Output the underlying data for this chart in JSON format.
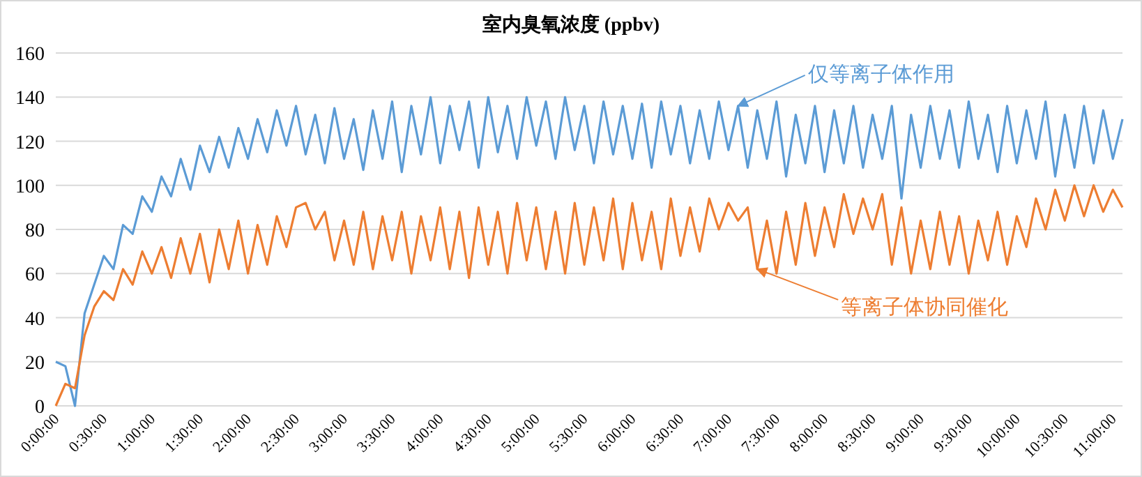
{
  "chart_data": {
    "type": "line",
    "title": "室内臭氧浓度 (ppbv)",
    "x": [
      0,
      0.1,
      0.2,
      0.3,
      0.4,
      0.5,
      0.6,
      0.7,
      0.8,
      0.9,
      1.0,
      1.1,
      1.2,
      1.3,
      1.4,
      1.5,
      1.6,
      1.7,
      1.8,
      1.9,
      2.0,
      2.1,
      2.2,
      2.3,
      2.4,
      2.5,
      2.6,
      2.7,
      2.8,
      2.9,
      3.0,
      3.1,
      3.2,
      3.3,
      3.4,
      3.5,
      3.6,
      3.7,
      3.8,
      3.9,
      4.0,
      4.1,
      4.2,
      4.3,
      4.4,
      4.5,
      4.6,
      4.7,
      4.8,
      4.9,
      5.0,
      5.1,
      5.2,
      5.3,
      5.4,
      5.5,
      5.6,
      5.7,
      5.8,
      5.9,
      6.0,
      6.1,
      6.2,
      6.3,
      6.4,
      6.5,
      6.6,
      6.7,
      6.8,
      6.9,
      7.0,
      7.1,
      7.2,
      7.3,
      7.4,
      7.5,
      7.6,
      7.7,
      7.8,
      7.9,
      8.0,
      8.1,
      8.2,
      8.3,
      8.4,
      8.5,
      8.6,
      8.7,
      8.8,
      8.9,
      9.0,
      9.1,
      9.2,
      9.3,
      9.4,
      9.5,
      9.6,
      9.7,
      9.8,
      9.9,
      10.0,
      10.1,
      10.2,
      10.3,
      10.4,
      10.5,
      10.6,
      10.7,
      10.8,
      10.9,
      11.0,
      11.1
    ],
    "series": [
      {
        "color": "#5b9bd5",
        "values": [
          20,
          18,
          0,
          42,
          55,
          68,
          62,
          82,
          78,
          95,
          88,
          104,
          95,
          112,
          98,
          118,
          106,
          122,
          108,
          126,
          112,
          130,
          115,
          134,
          118,
          136,
          114,
          132,
          110,
          135,
          112,
          130,
          107,
          134,
          112,
          138,
          106,
          136,
          114,
          140,
          110,
          136,
          116,
          138,
          108,
          140,
          115,
          136,
          112,
          140,
          118,
          138,
          112,
          140,
          116,
          136,
          110,
          138,
          114,
          136,
          112,
          137,
          108,
          138,
          114,
          136,
          110,
          134,
          112,
          138,
          116,
          136,
          108,
          134,
          112,
          138,
          104,
          132,
          110,
          136,
          106,
          134,
          110,
          136,
          108,
          132,
          112,
          136,
          94,
          132,
          108,
          136,
          112,
          134,
          108,
          138,
          112,
          132,
          106,
          136,
          110,
          134,
          112,
          138,
          104,
          132,
          108,
          136,
          110,
          134,
          112,
          130
        ]
      },
      {
        "color": "#ed7d31",
        "values": [
          0,
          10,
          8,
          32,
          45,
          52,
          48,
          62,
          55,
          70,
          60,
          72,
          58,
          76,
          60,
          78,
          56,
          80,
          62,
          84,
          60,
          82,
          64,
          86,
          72,
          90,
          92,
          80,
          88,
          66,
          84,
          64,
          88,
          62,
          86,
          66,
          88,
          60,
          86,
          66,
          90,
          62,
          88,
          58,
          90,
          64,
          88,
          60,
          92,
          66,
          90,
          62,
          88,
          60,
          92,
          64,
          90,
          66,
          94,
          62,
          92,
          66,
          88,
          62,
          94,
          68,
          90,
          70,
          94,
          80,
          92,
          84,
          90,
          62,
          84,
          60,
          88,
          64,
          92,
          68,
          90,
          72,
          96,
          78,
          94,
          80,
          96,
          64,
          90,
          60,
          84,
          62,
          88,
          64,
          86,
          60,
          84,
          66,
          88,
          64,
          86,
          72,
          94,
          80,
          98,
          84,
          100,
          86,
          100,
          88,
          98,
          90
        ]
      }
    ],
    "xlim": [
      0,
      11.1
    ],
    "ylim": [
      0,
      160
    ],
    "yticks": [
      0,
      20,
      40,
      60,
      80,
      100,
      120,
      140,
      160
    ],
    "xticks": [
      {
        "value": 0,
        "label": "0:00:00"
      },
      {
        "value": 0.5,
        "label": "0:30:00"
      },
      {
        "value": 1,
        "label": "1:00:00"
      },
      {
        "value": 1.5,
        "label": "1:30:00"
      },
      {
        "value": 2,
        "label": "2:00:00"
      },
      {
        "value": 2.5,
        "label": "2:30:00"
      },
      {
        "value": 3,
        "label": "3:00:00"
      },
      {
        "value": 3.5,
        "label": "3:30:00"
      },
      {
        "value": 4,
        "label": "4:00:00"
      },
      {
        "value": 4.5,
        "label": "4:30:00"
      },
      {
        "value": 5,
        "label": "5:00:00"
      },
      {
        "value": 5.5,
        "label": "5:30:00"
      },
      {
        "value": 6,
        "label": "6:00:00"
      },
      {
        "value": 6.5,
        "label": "6:30:00"
      },
      {
        "value": 7,
        "label": "7:00:00"
      },
      {
        "value": 7.5,
        "label": "7:30:00"
      },
      {
        "value": 8,
        "label": "8:00:00"
      },
      {
        "value": 8.5,
        "label": "8:30:00"
      },
      {
        "value": 9,
        "label": "9:00:00"
      },
      {
        "value": 9.5,
        "label": "9:30:00"
      },
      {
        "value": 10,
        "label": "10:00:00"
      },
      {
        "value": 10.5,
        "label": "10:30:00"
      },
      {
        "value": 11,
        "label": "11:00:00"
      }
    ],
    "annotations": [
      {
        "text": "仅等离子体作用",
        "x": 7.1,
        "y": 136
      },
      {
        "text": "等离子体协同催化",
        "x": 7.3,
        "y": 62
      }
    ],
    "grid": "y",
    "marker": "none",
    "line_style": "solid"
  }
}
